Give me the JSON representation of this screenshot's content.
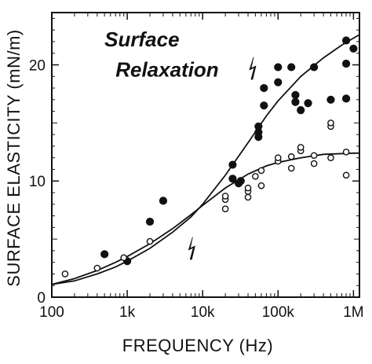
{
  "chart_data": {
    "type": "scatter",
    "title": "",
    "xlabel": "FREQUENCY (Hz)",
    "ylabel": "SURFACE ELASTICITY (mN/m)",
    "xscale": "log",
    "xlim": [
      100,
      1200000
    ],
    "ylim": [
      0,
      24.5
    ],
    "xticks": [
      {
        "value": 100,
        "label": "100"
      },
      {
        "value": 1000,
        "label": "1k"
      },
      {
        "value": 10000,
        "label": "10k"
      },
      {
        "value": 100000,
        "label": "100k"
      },
      {
        "value": 1000000,
        "label": "1M"
      }
    ],
    "yticks": [
      {
        "value": 0,
        "label": "0"
      },
      {
        "value": 10,
        "label": "10"
      },
      {
        "value": 20,
        "label": "20"
      }
    ],
    "annotations": [
      {
        "text": "Surface",
        "x": 500,
        "y": 21.6
      },
      {
        "text": "Relaxation",
        "x": 700,
        "y": 19.0
      }
    ],
    "markers": [
      {
        "symbol": "lightning-bolt",
        "x": 7000,
        "y": 4.2
      },
      {
        "symbol": "lightning-bolt",
        "x": 45000,
        "y": 19.7
      }
    ],
    "series": [
      {
        "marker": "filled-circle",
        "points": [
          [
            500,
            3.7
          ],
          [
            1000,
            3.1
          ],
          [
            2000,
            6.5
          ],
          [
            3000,
            8.3
          ],
          [
            25000,
            10.2
          ],
          [
            25000,
            11.4
          ],
          [
            30000,
            9.8
          ],
          [
            32000,
            10.0
          ],
          [
            55000,
            13.8
          ],
          [
            55000,
            14.2
          ],
          [
            55000,
            14.7
          ],
          [
            65000,
            16.5
          ],
          [
            65000,
            18.0
          ],
          [
            100000,
            18.5
          ],
          [
            100000,
            19.8
          ],
          [
            150000,
            19.8
          ],
          [
            170000,
            16.8
          ],
          [
            170000,
            17.4
          ],
          [
            200000,
            16.1
          ],
          [
            250000,
            16.7
          ],
          [
            300000,
            19.8
          ],
          [
            500000,
            17.0
          ],
          [
            800000,
            17.1
          ],
          [
            800000,
            20.1
          ],
          [
            800000,
            22.1
          ],
          [
            1000000,
            21.4
          ]
        ]
      },
      {
        "marker": "open-circle",
        "points": [
          [
            150,
            2.0
          ],
          [
            400,
            2.5
          ],
          [
            900,
            3.4
          ],
          [
            2000,
            4.8
          ],
          [
            20000,
            7.6
          ],
          [
            20000,
            8.4
          ],
          [
            20000,
            8.7
          ],
          [
            40000,
            8.6
          ],
          [
            40000,
            9.1
          ],
          [
            40000,
            9.4
          ],
          [
            50000,
            10.4
          ],
          [
            60000,
            9.6
          ],
          [
            60000,
            10.9
          ],
          [
            100000,
            11.7
          ],
          [
            100000,
            12.0
          ],
          [
            150000,
            11.1
          ],
          [
            150000,
            12.1
          ],
          [
            200000,
            12.6
          ],
          [
            200000,
            12.9
          ],
          [
            300000,
            11.5
          ],
          [
            300000,
            12.2
          ],
          [
            500000,
            12.0
          ],
          [
            500000,
            14.7
          ],
          [
            500000,
            15.0
          ],
          [
            800000,
            10.5
          ],
          [
            800000,
            12.5
          ]
        ]
      }
    ],
    "fit_curves": [
      {
        "style": "line",
        "points": [
          [
            100,
            1.1
          ],
          [
            200,
            1.6
          ],
          [
            400,
            2.3
          ],
          [
            700,
            3.0
          ],
          [
            1000,
            3.5
          ],
          [
            2000,
            4.6
          ],
          [
            4000,
            5.9
          ],
          [
            7000,
            7.1
          ],
          [
            10000,
            7.9
          ],
          [
            20000,
            9.4
          ],
          [
            40000,
            10.6
          ],
          [
            70000,
            11.3
          ],
          [
            100000,
            11.6
          ],
          [
            200000,
            12.0
          ],
          [
            400000,
            12.3
          ],
          [
            1000000,
            12.4
          ],
          [
            1200000,
            12.4
          ]
        ]
      },
      {
        "style": "line",
        "points": [
          [
            100,
            1.1
          ],
          [
            200,
            1.4
          ],
          [
            400,
            2.0
          ],
          [
            700,
            2.6
          ],
          [
            1000,
            3.1
          ],
          [
            2000,
            4.2
          ],
          [
            4000,
            5.6
          ],
          [
            7000,
            6.9
          ],
          [
            10000,
            8.0
          ],
          [
            20000,
            10.5
          ],
          [
            40000,
            13.3
          ],
          [
            70000,
            15.6
          ],
          [
            100000,
            16.9
          ],
          [
            200000,
            19.0
          ],
          [
            400000,
            20.6
          ],
          [
            700000,
            21.7
          ],
          [
            1000000,
            22.3
          ],
          [
            1200000,
            22.6
          ]
        ]
      }
    ]
  }
}
